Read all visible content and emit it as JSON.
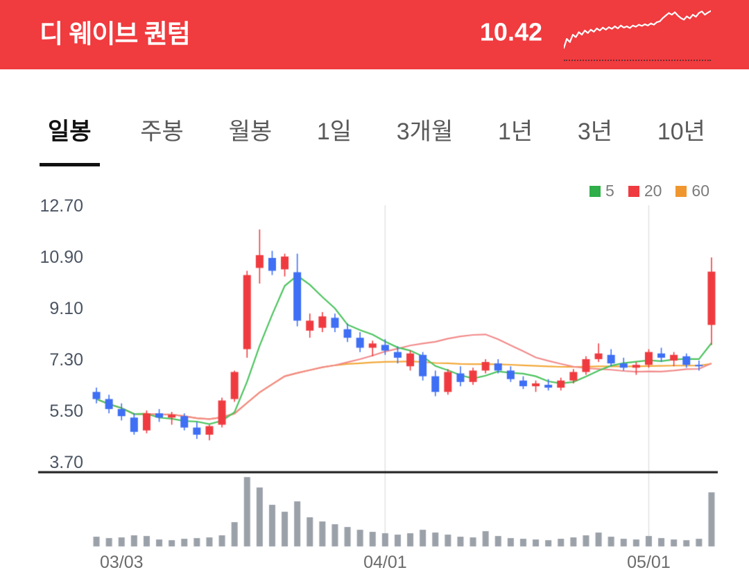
{
  "header": {
    "title": "디 웨이브 퀀텀",
    "price": "10.42",
    "bg_color": "#f03b3f",
    "sparkline": [
      8,
      30,
      22,
      40,
      34,
      46,
      40,
      50,
      44,
      52,
      47,
      55,
      50,
      57,
      52,
      58,
      54,
      60,
      55,
      62,
      57,
      60,
      56,
      62,
      59,
      64,
      61,
      65,
      62,
      67,
      64,
      70,
      72,
      80,
      86,
      92,
      88,
      94,
      86,
      80,
      76,
      84,
      79,
      88,
      83,
      92,
      96,
      88,
      93,
      97
    ]
  },
  "tabs": {
    "items": [
      {
        "label": "일봉",
        "active": true
      },
      {
        "label": "주봉",
        "active": false
      },
      {
        "label": "월봉",
        "active": false
      },
      {
        "label": "1일",
        "active": false
      },
      {
        "label": "3개월",
        "active": false
      },
      {
        "label": "1년",
        "active": false
      },
      {
        "label": "3년",
        "active": false
      },
      {
        "label": "10년",
        "active": false
      }
    ]
  },
  "chart_data": {
    "type": "candlestick",
    "title": "디 웨이브 퀀텀 일봉 차트",
    "ylim": [
      3.7,
      12.7
    ],
    "y_ticks": [
      "12.70",
      "10.90",
      "9.10",
      "7.30",
      "5.50",
      "3.70"
    ],
    "x_ticks": [
      {
        "index": 2,
        "label": "03/03",
        "line": false
      },
      {
        "index": 23,
        "label": "04/01",
        "line": true
      },
      {
        "index": 44,
        "label": "05/01",
        "line": true
      }
    ],
    "up_color": "#ef3b40",
    "down_color": "#3e6ff4",
    "volume_color": "#9ba1a9",
    "grid_color": "#e2e2e2",
    "separator_color": "#161616",
    "legend": [
      {
        "label": "5",
        "period": 5,
        "color": "#2fae49",
        "line_color": "#4cc45f"
      },
      {
        "label": "20",
        "period": 20,
        "color": "#ef3b40",
        "line_color": "#f28b8b"
      },
      {
        "label": "60",
        "period": 60,
        "color": "#f0962f",
        "line_color": "#f2a93b"
      }
    ],
    "candles_format": [
      "open",
      "high",
      "low",
      "close",
      "volume"
    ],
    "candles": [
      [
        6.2,
        6.35,
        5.8,
        5.95,
        14
      ],
      [
        5.95,
        6.1,
        5.45,
        5.6,
        12
      ],
      [
        5.6,
        5.8,
        5.2,
        5.35,
        13
      ],
      [
        5.3,
        5.45,
        4.7,
        4.8,
        16
      ],
      [
        4.85,
        5.55,
        4.75,
        5.45,
        15
      ],
      [
        5.45,
        5.6,
        5.15,
        5.3,
        10
      ],
      [
        5.3,
        5.5,
        5.05,
        5.4,
        9
      ],
      [
        5.35,
        5.45,
        4.85,
        4.95,
        11
      ],
      [
        4.95,
        5.15,
        4.55,
        4.7,
        12
      ],
      [
        4.7,
        5.05,
        4.5,
        5.0,
        13
      ],
      [
        5.05,
        6.0,
        4.95,
        5.9,
        16
      ],
      [
        5.95,
        6.95,
        5.85,
        6.9,
        35
      ],
      [
        7.7,
        10.45,
        7.4,
        10.3,
        100
      ],
      [
        10.55,
        11.9,
        10.0,
        11.0,
        85
      ],
      [
        10.9,
        11.15,
        10.3,
        10.45,
        60
      ],
      [
        10.5,
        11.05,
        10.25,
        10.95,
        50
      ],
      [
        10.4,
        11.05,
        8.5,
        8.7,
        65
      ],
      [
        8.35,
        8.95,
        8.1,
        8.7,
        42
      ],
      [
        8.45,
        9.0,
        8.3,
        8.85,
        36
      ],
      [
        8.8,
        8.95,
        8.3,
        8.45,
        32
      ],
      [
        8.4,
        8.6,
        7.95,
        8.1,
        28
      ],
      [
        8.1,
        8.3,
        7.6,
        7.75,
        24
      ],
      [
        7.75,
        8.0,
        7.45,
        7.9,
        21
      ],
      [
        7.85,
        8.05,
        7.5,
        7.65,
        19
      ],
      [
        7.6,
        7.8,
        7.2,
        7.4,
        17
      ],
      [
        7.1,
        7.65,
        6.95,
        7.55,
        19
      ],
      [
        7.5,
        7.6,
        6.6,
        6.75,
        24
      ],
      [
        6.75,
        6.95,
        6.05,
        6.2,
        20
      ],
      [
        6.2,
        7.0,
        6.1,
        6.9,
        17
      ],
      [
        6.85,
        7.1,
        6.4,
        6.55,
        14
      ],
      [
        6.55,
        7.05,
        6.45,
        6.95,
        13
      ],
      [
        6.95,
        7.35,
        6.85,
        7.25,
        22
      ],
      [
        7.2,
        7.35,
        6.85,
        6.95,
        15
      ],
      [
        6.95,
        7.1,
        6.55,
        6.65,
        12
      ],
      [
        6.6,
        6.75,
        6.3,
        6.4,
        11
      ],
      [
        6.4,
        6.6,
        6.2,
        6.5,
        10
      ],
      [
        6.45,
        6.65,
        6.25,
        6.35,
        9
      ],
      [
        6.35,
        6.7,
        6.25,
        6.6,
        11
      ],
      [
        6.6,
        7.0,
        6.5,
        6.9,
        13
      ],
      [
        6.9,
        7.45,
        6.8,
        7.35,
        16
      ],
      [
        7.35,
        7.9,
        7.25,
        7.55,
        20
      ],
      [
        7.5,
        7.7,
        7.1,
        7.2,
        14
      ],
      [
        7.2,
        7.4,
        6.95,
        7.05,
        11
      ],
      [
        7.05,
        7.25,
        6.8,
        7.15,
        10
      ],
      [
        7.15,
        7.7,
        7.05,
        7.6,
        15
      ],
      [
        7.55,
        7.75,
        7.25,
        7.4,
        12
      ],
      [
        7.3,
        7.6,
        7.1,
        7.5,
        10
      ],
      [
        7.45,
        7.55,
        7.05,
        7.15,
        9
      ],
      [
        7.15,
        7.3,
        6.95,
        7.1,
        11
      ],
      [
        8.55,
        10.92,
        7.85,
        10.42,
        78
      ]
    ]
  }
}
